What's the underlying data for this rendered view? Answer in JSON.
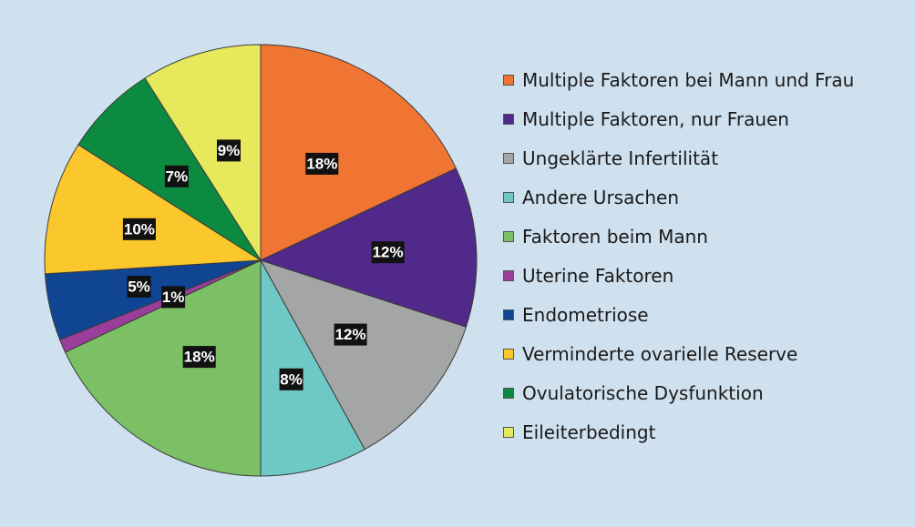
{
  "chart_data": {
    "type": "pie",
    "start_angle_deg": 0,
    "direction": "clockwise",
    "legend_position": "right",
    "slices": [
      {
        "label": "Multiple Faktoren bei Mann und Frau",
        "value": 18,
        "display": "18%",
        "color": "#f07533"
      },
      {
        "label": "Multiple Faktoren, nur Frauen",
        "value": 12,
        "display": "12%",
        "color": "#51298a"
      },
      {
        "label": "Ungeklärte Infertilität",
        "value": 12,
        "display": "12%",
        "color": "#a4a5a5"
      },
      {
        "label": "Andere Ursachen",
        "value": 8,
        "display": "8%",
        "color": "#6ec8c5"
      },
      {
        "label": "Faktoren beim Mann",
        "value": 18,
        "display": "18%",
        "color": "#7bc064"
      },
      {
        "label": "Uterine Faktoren",
        "value": 1,
        "display": "1%",
        "color": "#9b3e9b"
      },
      {
        "label": "Endometriose",
        "value": 5,
        "display": "5%",
        "color": "#0f4592"
      },
      {
        "label": "Verminderte ovarielle Reserve",
        "value": 10,
        "display": "10%",
        "color": "#fac82d"
      },
      {
        "label": "Ovulatorische Dysfunktion",
        "value": 7,
        "display": "7%",
        "color": "#0c8a3f"
      },
      {
        "label": "Eileiterbedingt",
        "value": 9,
        "display": "9%",
        "color": "#e6e95c"
      }
    ]
  }
}
